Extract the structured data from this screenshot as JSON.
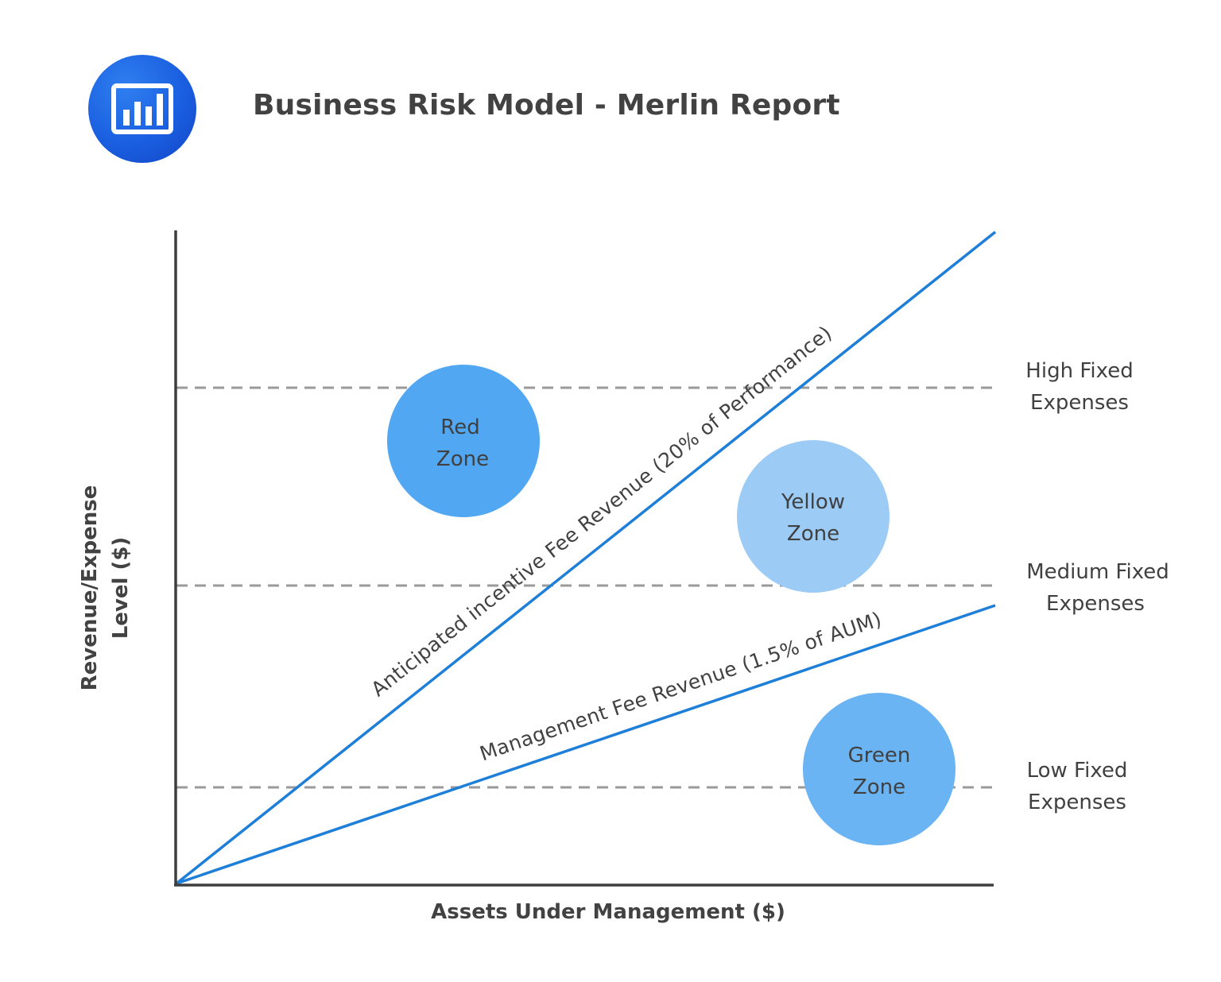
{
  "header": {
    "title": "Business Risk Model - Merlin Report",
    "icon": "bar-chart-icon",
    "icon_color": "#1a5fe0"
  },
  "axes": {
    "x_label": "Assets Under Management ($)",
    "y_label_line1": "Revenue/Expense",
    "y_label_line2": "Level ($)"
  },
  "lines": {
    "incentive_fee": {
      "label": "Anticipated incentive Fee Revenue (20% of Performance)",
      "color": "#1e7fd9"
    },
    "management_fee": {
      "label": "Management Fee Revenue (1.5% of AUM)",
      "color": "#1e7fd9"
    }
  },
  "expense_levels": {
    "high": {
      "line1": "High Fixed",
      "line2": "Expenses"
    },
    "medium": {
      "line1": "Medium Fixed",
      "line2": "Expenses"
    },
    "low": {
      "line1": "Low Fixed",
      "line2": "Expenses"
    },
    "dash_color": "#9a9a9a"
  },
  "zones": {
    "red": {
      "line1": "Red",
      "line2": "Zone",
      "color": "#52a7f2"
    },
    "yellow": {
      "line1": "Yellow",
      "line2": "Zone",
      "color": "#9ccbf6"
    },
    "green": {
      "line1": "Green",
      "line2": "Zone",
      "color": "#6bb4f4"
    }
  }
}
